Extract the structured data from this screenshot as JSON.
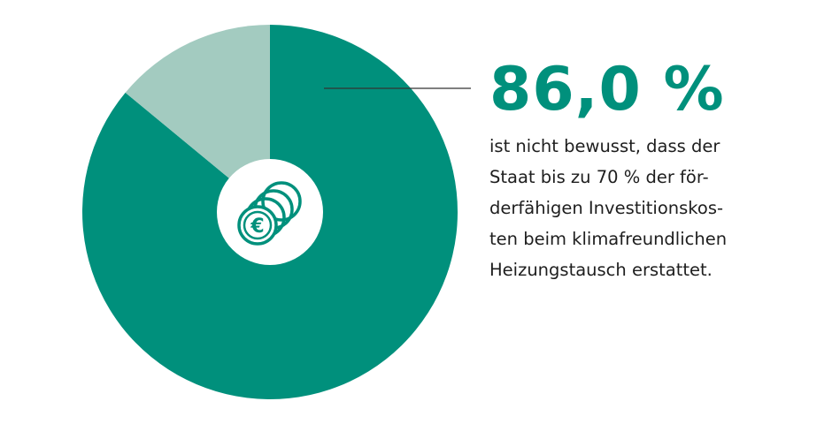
{
  "chart_data": {
    "type": "pie",
    "slices": [
      {
        "value": 86.0,
        "color": "#00907c"
      },
      {
        "value": 14.0,
        "color": "#a3cbc0"
      }
    ]
  },
  "center_icon": "euro-coins-icon",
  "callout": {
    "value": "86,0 %",
    "description_lines": [
      "ist nicht bewusst, dass der",
      "Staat bis zu 70 % der för-",
      "derfähigen Investitionskos-",
      "ten beim klimafreundlichen",
      "Heizungstausch erstattet."
    ]
  },
  "colors": {
    "accent": "#00907c",
    "accent_light": "#a3cbc0",
    "text": "#1e1e1e",
    "leader_line": "#333333"
  }
}
